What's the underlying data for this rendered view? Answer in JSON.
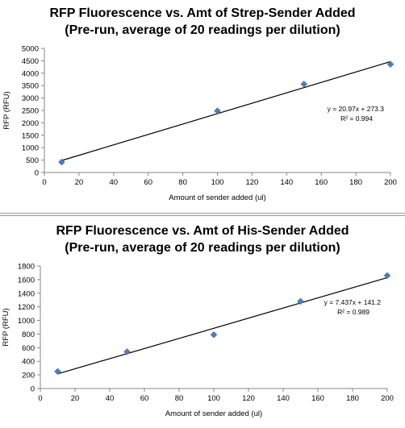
{
  "chart_data": [
    {
      "type": "scatter",
      "title": "RFP Fluorescence vs. Amt of Strep-Sender Added",
      "subtitle": "(Pre-run, average of 20 readings per dilution)",
      "xlabel": "Amount of sender added (ul)",
      "ylabel": "RFP (RFU)",
      "xlim": [
        0,
        200
      ],
      "ylim": [
        0,
        5000
      ],
      "xticks": [
        0,
        20,
        40,
        60,
        80,
        100,
        120,
        140,
        160,
        180,
        200
      ],
      "yticks": [
        0,
        500,
        1000,
        1500,
        2000,
        2500,
        3000,
        3500,
        4000,
        4500,
        5000
      ],
      "grid": false,
      "series": [
        {
          "x": [
            10,
            100,
            150,
            200
          ],
          "y": [
            420,
            2480,
            3560,
            4360
          ],
          "color": "#4a7ebb",
          "marker": "diamond"
        }
      ],
      "trendline": {
        "slope": 20.97,
        "intercept": 273.3,
        "x_range": [
          10,
          200
        ],
        "color": "#000000"
      },
      "annotations": {
        "equation": "y = 20.97x + 273.3",
        "r2": "R² = 0.994"
      }
    },
    {
      "type": "scatter",
      "title": "RFP Fluorescence vs. Amt of His-Sender Added",
      "subtitle": "(Pre-run, average of 20 readings per dilution)",
      "xlabel": "Amount of sender added (ul)",
      "ylabel": "RFP (RFU)",
      "xlim": [
        0,
        200
      ],
      "ylim": [
        0,
        1800
      ],
      "xticks": [
        0,
        20,
        40,
        60,
        80,
        100,
        120,
        140,
        160,
        180,
        200
      ],
      "yticks": [
        0,
        200,
        400,
        600,
        800,
        1000,
        1200,
        1400,
        1600,
        1800
      ],
      "grid": false,
      "series": [
        {
          "x": [
            10,
            50,
            100,
            150,
            200
          ],
          "y": [
            250,
            540,
            790,
            1280,
            1660
          ],
          "color": "#4a7ebb",
          "marker": "diamond"
        }
      ],
      "trendline": {
        "slope": 7.437,
        "intercept": 141.2,
        "x_range": [
          10,
          200
        ],
        "color": "#000000"
      },
      "annotations": {
        "equation": "y = 7.437x + 141.2",
        "r2": "R² = 0.989"
      }
    }
  ]
}
